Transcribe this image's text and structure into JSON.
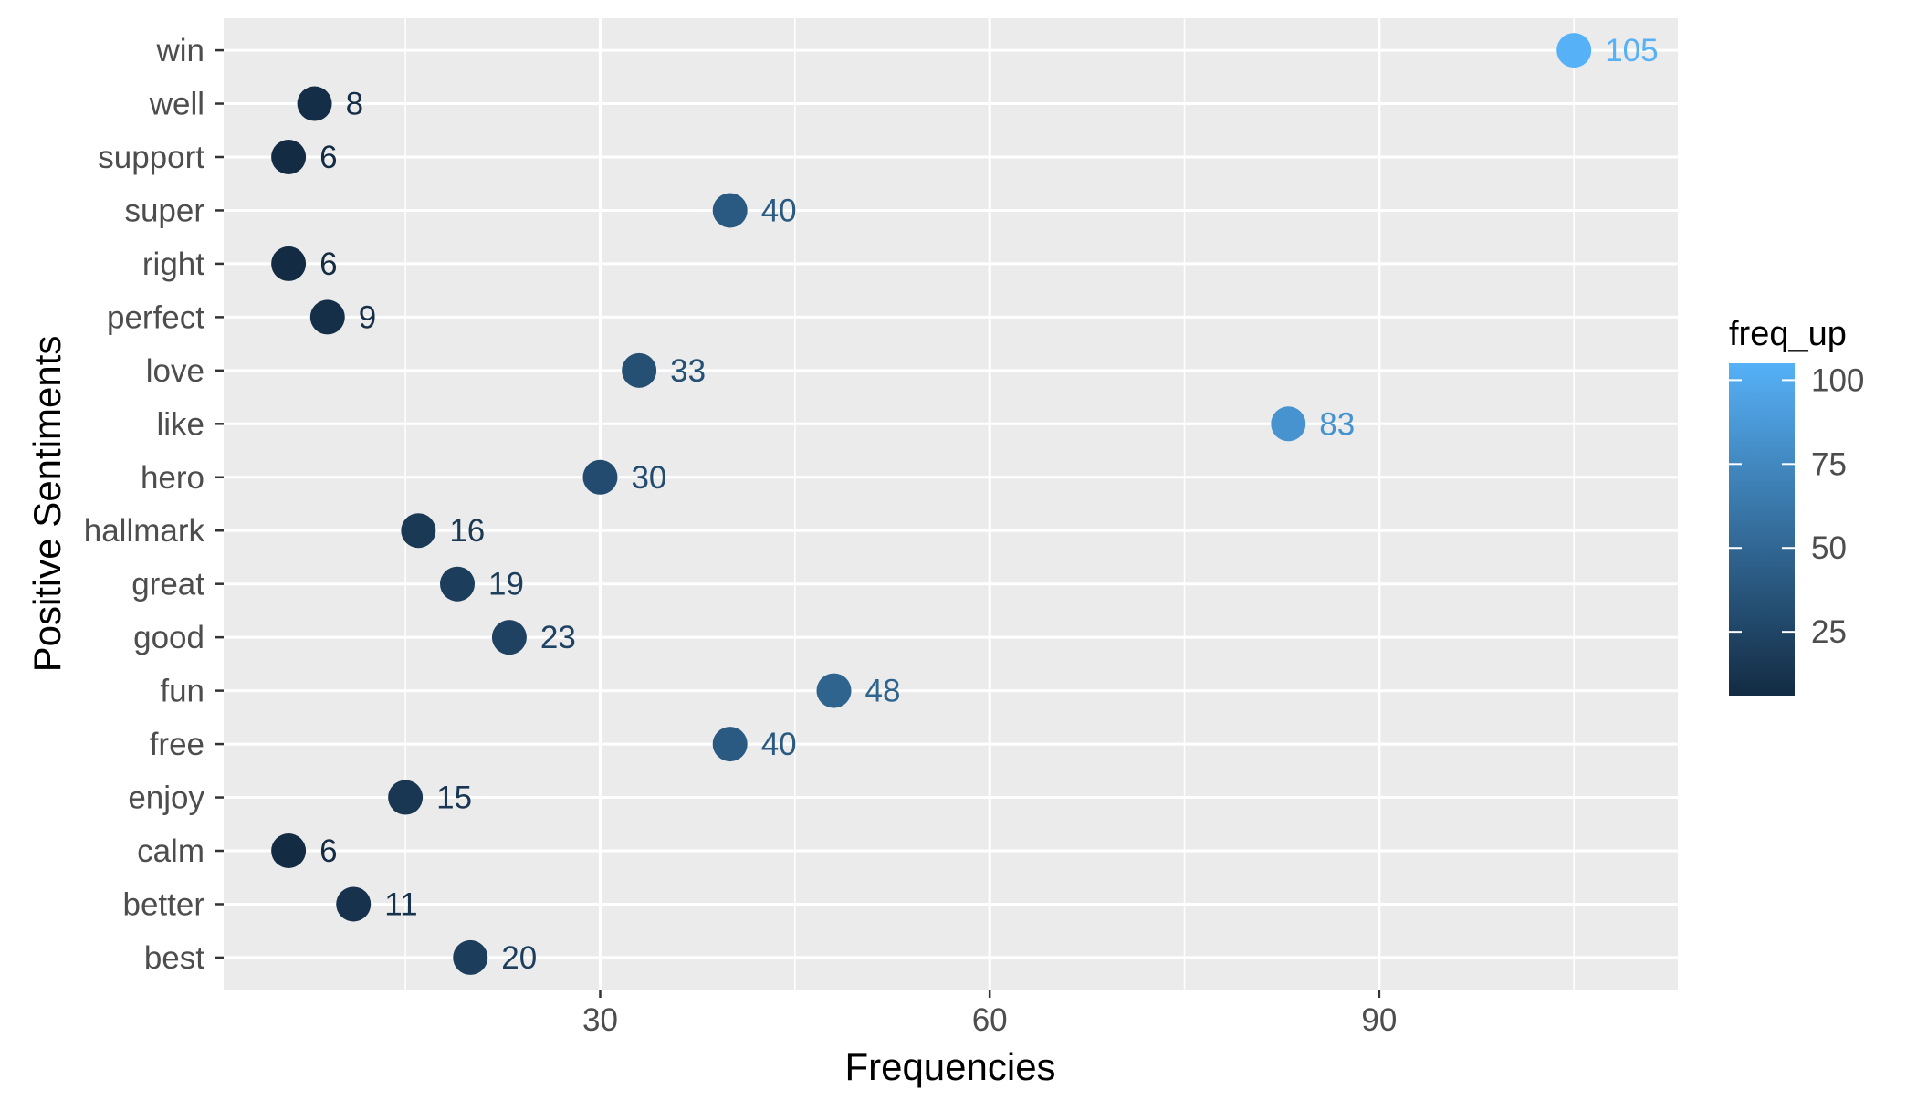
{
  "chart_data": {
    "type": "scatter",
    "title": "",
    "xlabel": "Frequencies",
    "ylabel": "Positive Sentiments",
    "xlim": [
      1,
      113
    ],
    "x_ticks": [
      30,
      60,
      90
    ],
    "x_minor_ticks": [
      15,
      45,
      75,
      105
    ],
    "grid": true,
    "legend_position": "right",
    "categories": [
      "win",
      "well",
      "support",
      "super",
      "right",
      "perfect",
      "love",
      "like",
      "hero",
      "hallmark",
      "great",
      "good",
      "fun",
      "free",
      "enjoy",
      "calm",
      "better",
      "best"
    ],
    "series": [
      {
        "values": [
          105,
          8,
          6,
          40,
          6,
          9,
          33,
          83,
          30,
          16,
          19,
          23,
          48,
          40,
          15,
          6,
          11,
          20
        ]
      }
    ],
    "color_scale": {
      "title": "freq_up",
      "low_color": "#132b43",
      "high_color": "#56b1f7",
      "range": [
        6,
        105
      ],
      "ticks": [
        25,
        50,
        75,
        100
      ]
    },
    "colors": {
      "panel_background": "#ebebeb",
      "grid_line": "#ffffff",
      "axis_text": "#4d4d4d",
      "axis_title": "#000000"
    }
  }
}
